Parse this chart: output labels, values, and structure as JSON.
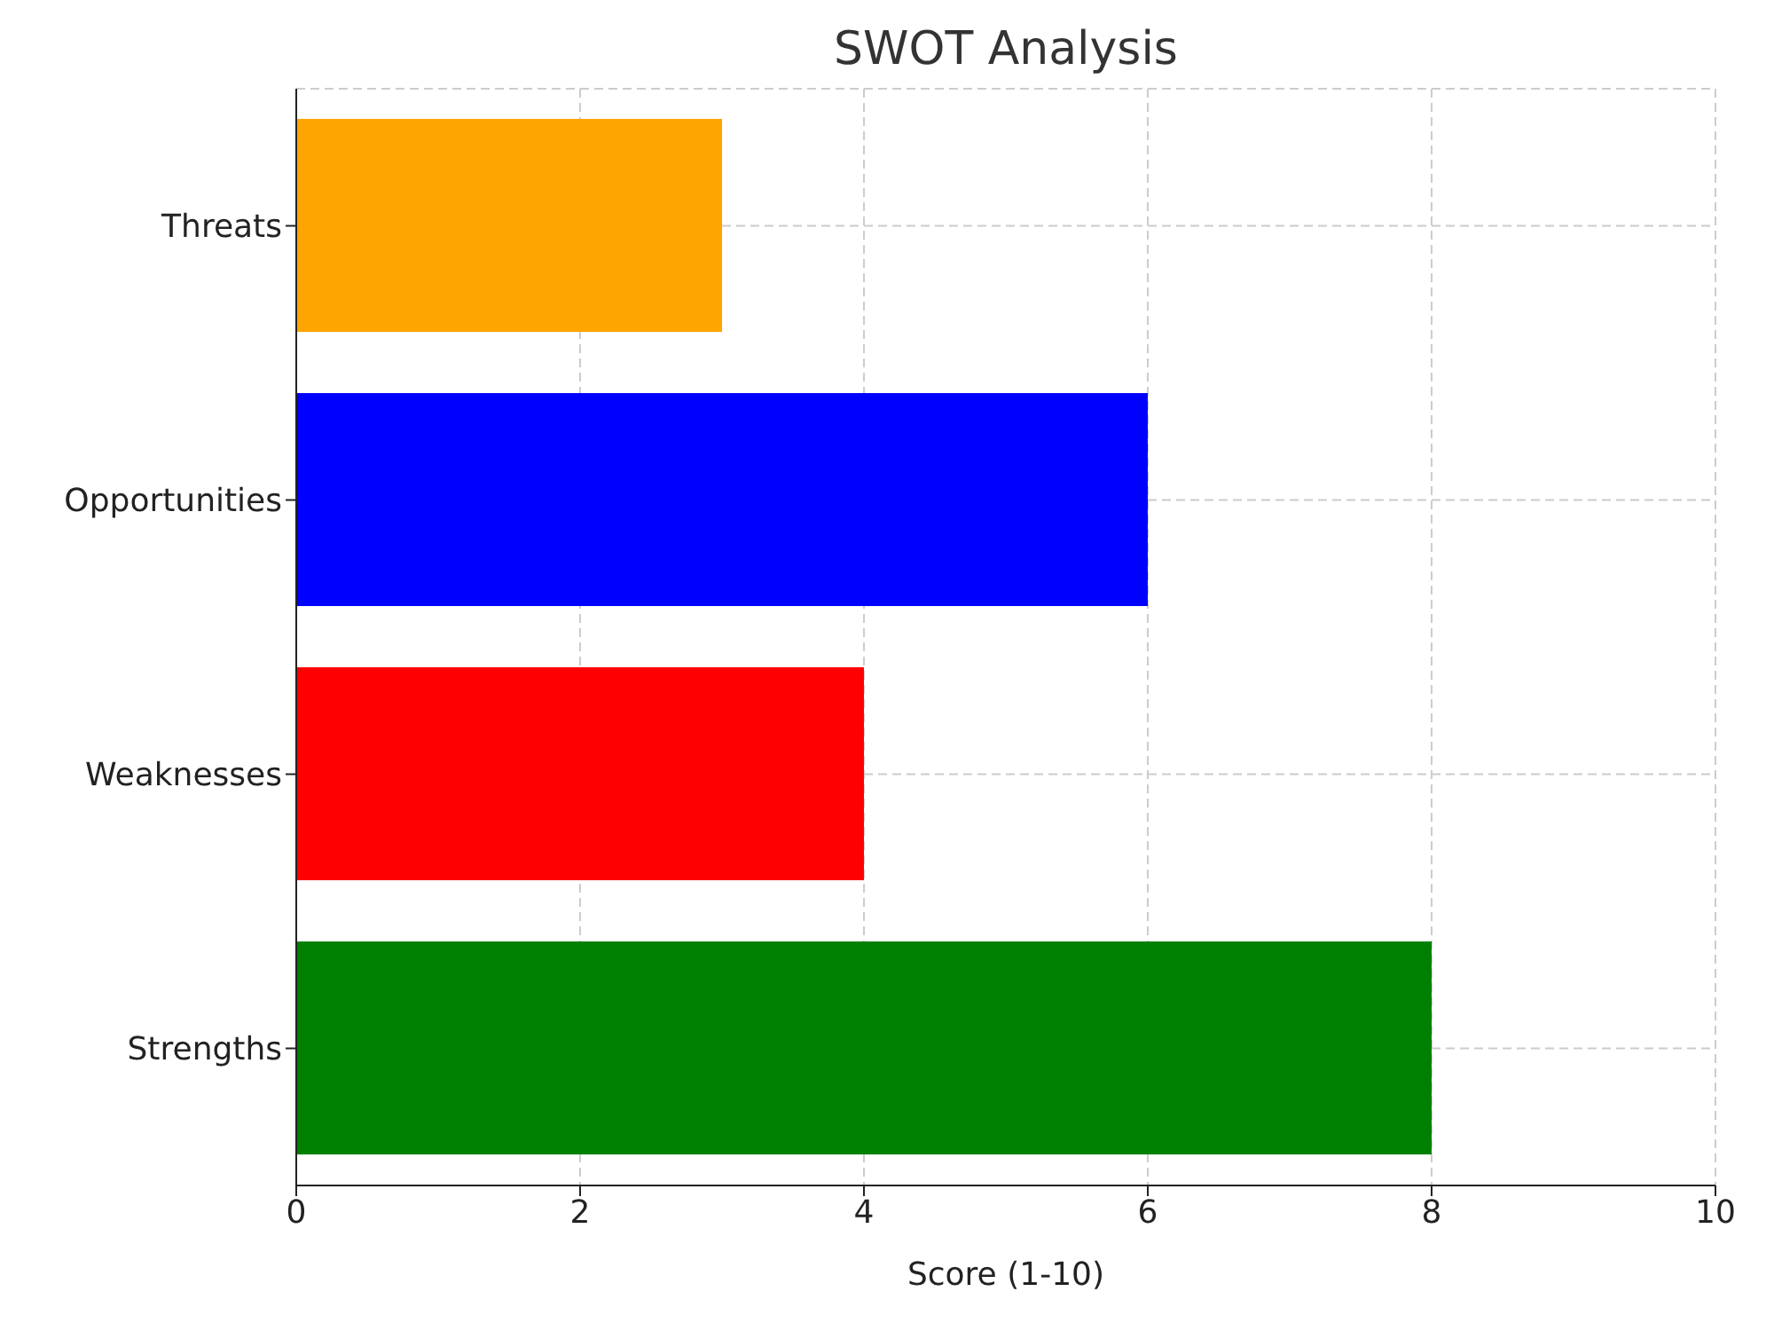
{
  "chart_data": {
    "type": "bar",
    "orientation": "horizontal",
    "title": "SWOT Analysis",
    "xlabel": "Score (1-10)",
    "categories": [
      "Threats",
      "Opportunities",
      "Weaknesses",
      "Strengths"
    ],
    "values": [
      3,
      6,
      4,
      8
    ],
    "colors": [
      "#ffa500",
      "#0000ff",
      "#ff0000",
      "#008000"
    ],
    "xlim": [
      0,
      10
    ],
    "xticks": [
      0,
      2,
      4,
      6,
      8,
      10
    ],
    "grid": true
  }
}
